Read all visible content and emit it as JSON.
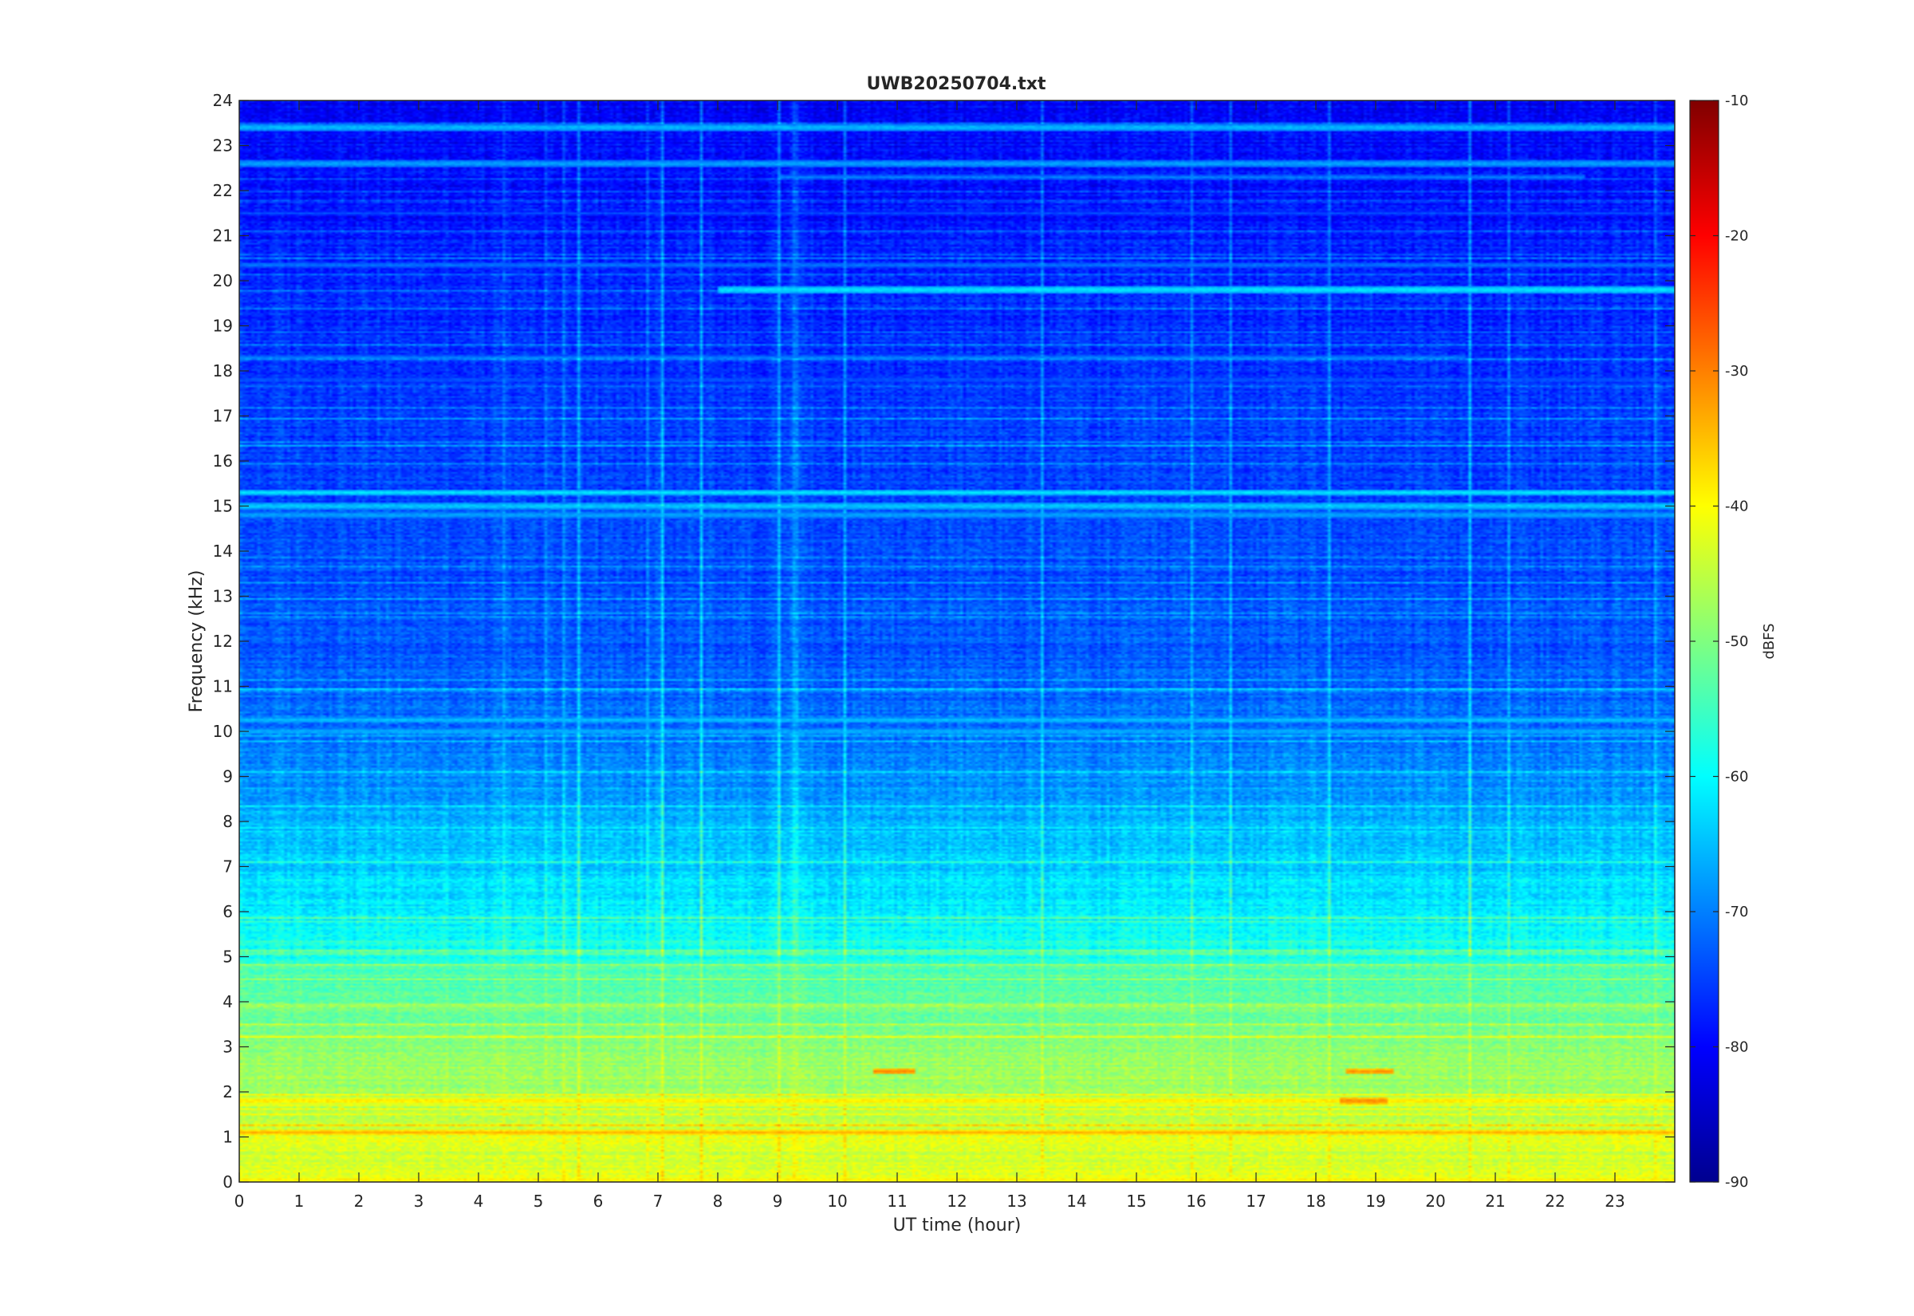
{
  "chart_data": {
    "type": "heatmap",
    "title": "UWB20250704.txt",
    "xlabel": "UT time (hour)",
    "ylabel": "Frequency (kHz)",
    "xlim": [
      0,
      24
    ],
    "ylim": [
      0,
      24
    ],
    "x_ticks": [
      "0",
      "1",
      "2",
      "3",
      "4",
      "5",
      "6",
      "7",
      "8",
      "9",
      "10",
      "11",
      "12",
      "13",
      "14",
      "15",
      "16",
      "17",
      "18",
      "19",
      "20",
      "21",
      "22",
      "23"
    ],
    "y_ticks": [
      "0",
      "1",
      "2",
      "3",
      "4",
      "5",
      "6",
      "7",
      "8",
      "9",
      "10",
      "11",
      "12",
      "13",
      "14",
      "15",
      "16",
      "17",
      "18",
      "19",
      "20",
      "21",
      "22",
      "23",
      "24"
    ],
    "colorbar": {
      "label": "dBFS",
      "colormap": "jet",
      "range": [
        -90,
        -10
      ],
      "ticks": [
        "-10",
        "-20",
        "-30",
        "-40",
        "-50",
        "-60",
        "-70",
        "-80",
        "-90"
      ]
    },
    "background_level_dbfs": [
      [
        0,
        -42
      ],
      [
        0.5,
        -44
      ],
      [
        1,
        -42
      ],
      [
        1.5,
        -45
      ],
      [
        2,
        -47
      ],
      [
        2.5,
        -48
      ],
      [
        3,
        -49
      ],
      [
        4,
        -52
      ],
      [
        4.8,
        -54
      ],
      [
        5,
        -58
      ],
      [
        6,
        -61
      ],
      [
        7,
        -64
      ],
      [
        8,
        -66
      ],
      [
        9,
        -69
      ],
      [
        10,
        -71
      ],
      [
        12,
        -73
      ],
      [
        14,
        -74
      ],
      [
        16,
        -75
      ],
      [
        18,
        -76
      ],
      [
        20,
        -77
      ],
      [
        22,
        -79
      ],
      [
        24,
        -80
      ]
    ],
    "features": [
      {
        "label": "",
        "type": "band",
        "freq_khz": 19.8,
        "t_start": 8.0,
        "t_end": 24.0,
        "level_dbfs": -61
      },
      {
        "label": "",
        "type": "band",
        "freq_khz": 18.3,
        "t_start": 0.0,
        "t_end": 20.5,
        "level_dbfs": -70
      },
      {
        "label": "",
        "type": "band",
        "freq_khz": 20.35,
        "t_start": 0.0,
        "t_end": 24.0,
        "level_dbfs": -70
      },
      {
        "label": "",
        "type": "band",
        "freq_khz": 22.3,
        "t_start": 9.0,
        "t_end": 22.5,
        "level_dbfs": -70
      },
      {
        "label": "",
        "type": "band",
        "freq_khz": 21.5,
        "t_start": 0.0,
        "t_end": 24.0,
        "level_dbfs": -74
      },
      {
        "label": "",
        "type": "band",
        "freq_khz": 15.3,
        "t_start": 0.0,
        "t_end": 24.0,
        "level_dbfs": -62
      },
      {
        "label": "",
        "type": "band",
        "freq_khz": 15.0,
        "t_start": 0.0,
        "t_end": 24.0,
        "level_dbfs": -63
      },
      {
        "label": "",
        "type": "band",
        "freq_khz": 14.8,
        "t_start": 0.0,
        "t_end": 24.0,
        "level_dbfs": -66
      },
      {
        "label": "",
        "type": "band",
        "freq_khz": 10.25,
        "t_start": 0.0,
        "t_end": 24.0,
        "level_dbfs": -64
      },
      {
        "label": "",
        "type": "band",
        "freq_khz": 10.0,
        "t_start": 0.0,
        "t_end": 24.0,
        "level_dbfs": -65
      },
      {
        "label": "",
        "type": "band",
        "freq_khz": 23.4,
        "t_start": 0.0,
        "t_end": 24.0,
        "level_dbfs": -64
      },
      {
        "label": "",
        "type": "band",
        "freq_khz": 22.6,
        "t_start": 0.0,
        "t_end": 24.0,
        "level_dbfs": -66
      },
      {
        "label": "",
        "type": "band",
        "freq_khz": 17.8,
        "t_start": 0.0,
        "t_end": 24.0,
        "level_dbfs": -72
      },
      {
        "label": "",
        "type": "band",
        "freq_khz": 1.1,
        "t_start": 0.0,
        "t_end": 24.0,
        "level_dbfs": -34
      },
      {
        "label": "",
        "type": "band",
        "freq_khz": 1.8,
        "t_start": 0.0,
        "t_end": 24.0,
        "level_dbfs": -37
      },
      {
        "label": "",
        "type": "band",
        "freq_khz": 2.45,
        "t_start": 10.6,
        "t_end": 11.3,
        "level_dbfs": -30
      },
      {
        "label": "",
        "type": "band",
        "freq_khz": 2.45,
        "t_start": 18.5,
        "t_end": 19.3,
        "level_dbfs": -31
      },
      {
        "label": "",
        "type": "band",
        "freq_khz": 1.8,
        "t_start": 18.4,
        "t_end": 19.2,
        "level_dbfs": -30
      },
      {
        "label": "",
        "type": "band",
        "freq_khz": 0.05,
        "t_start": 0.0,
        "t_end": 24.0,
        "level_dbfs": -38
      }
    ]
  }
}
